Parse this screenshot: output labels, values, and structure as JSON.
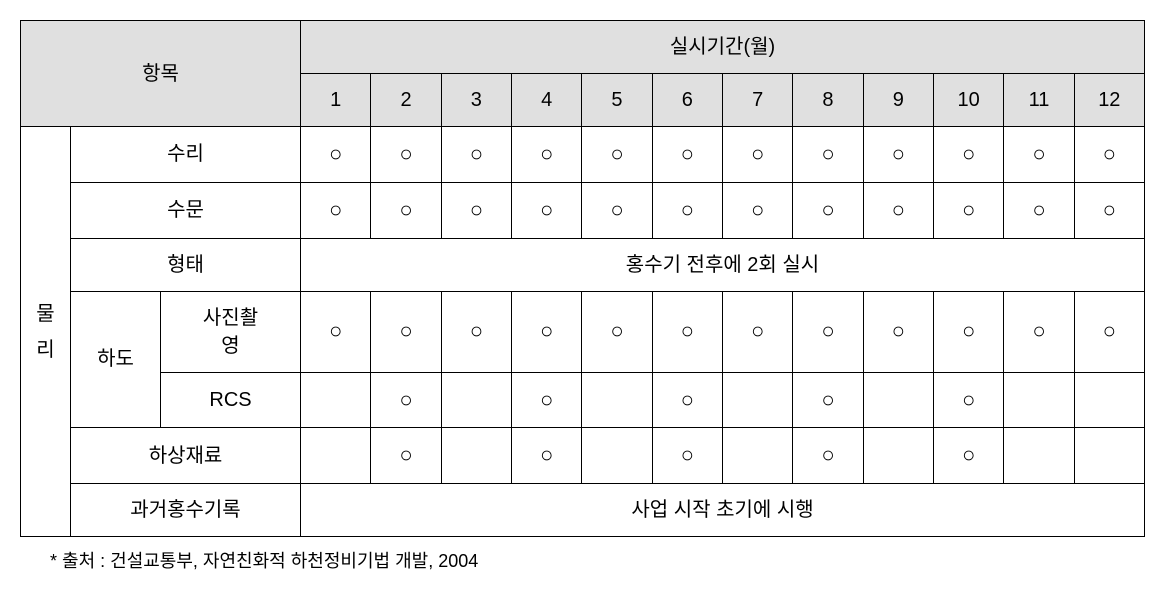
{
  "header": {
    "category_label": "항목",
    "period_label": "실시기간(월)",
    "months": [
      "1",
      "2",
      "3",
      "4",
      "5",
      "6",
      "7",
      "8",
      "9",
      "10",
      "11",
      "12"
    ]
  },
  "category_main": "물\n리",
  "rows": [
    {
      "label": "수리",
      "span": 2,
      "marks": [
        "○",
        "○",
        "○",
        "○",
        "○",
        "○",
        "○",
        "○",
        "○",
        "○",
        "○",
        "○"
      ]
    },
    {
      "label": "수문",
      "span": 2,
      "marks": [
        "○",
        "○",
        "○",
        "○",
        "○",
        "○",
        "○",
        "○",
        "○",
        "○",
        "○",
        "○"
      ]
    },
    {
      "label": "형태",
      "span": 2,
      "text": "홍수기 전후에 2회 실시"
    },
    {
      "parent": "하도",
      "label": "사진촬\n영",
      "marks": [
        "○",
        "○",
        "○",
        "○",
        "○",
        "○",
        "○",
        "○",
        "○",
        "○",
        "○",
        "○"
      ]
    },
    {
      "label": "RCS",
      "marks": [
        "",
        "○",
        "",
        "○",
        "",
        "○",
        "",
        "○",
        "",
        "○",
        "",
        ""
      ]
    },
    {
      "label": "하상재료",
      "span": 2,
      "marks": [
        "",
        "○",
        "",
        "○",
        "",
        "○",
        "",
        "○",
        "",
        "○",
        "",
        ""
      ]
    },
    {
      "label": "과거홍수기록",
      "span": 2,
      "text": "사업 시작 초기에 시행"
    }
  ],
  "footnote": "* 출처 : 건설교통부, 자연친화적 하천정비기법 개발, 2004",
  "colors": {
    "header_bg": "#e0e0e0",
    "border": "#000000",
    "background": "#ffffff"
  },
  "typography": {
    "cell_fontsize": 20,
    "footnote_fontsize": 18,
    "font_family": "Malgun Gothic"
  }
}
